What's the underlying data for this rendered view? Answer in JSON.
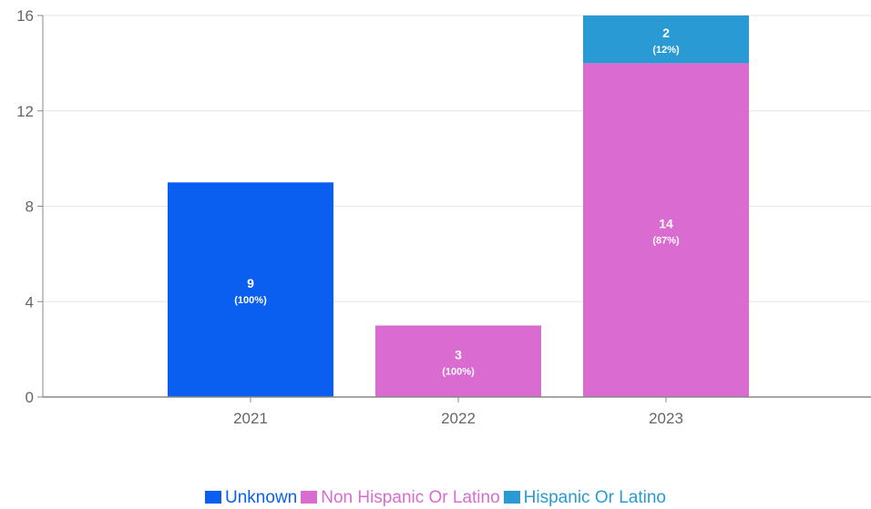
{
  "chart_data": {
    "type": "bar",
    "stacked": true,
    "categories": [
      "2021",
      "2022",
      "2023"
    ],
    "ylim": [
      0,
      16
    ],
    "yticks": [
      0,
      4,
      8,
      12,
      16
    ],
    "grid": true,
    "legend_position": "bottom",
    "series": [
      {
        "name": "Unknown",
        "color": "#0a5ff0",
        "values": [
          9,
          0,
          0
        ],
        "labels": [
          "(100%)",
          "",
          ""
        ]
      },
      {
        "name": "Non Hispanic Or Latino",
        "color": "#d96bd1",
        "values": [
          0,
          3,
          14
        ],
        "labels": [
          "",
          "(100%)",
          "(87%)"
        ]
      },
      {
        "name": "Hispanic Or Latino",
        "color": "#2a9ad4",
        "values": [
          0,
          0,
          2
        ],
        "labels": [
          "",
          "",
          "(12%)"
        ]
      }
    ]
  }
}
